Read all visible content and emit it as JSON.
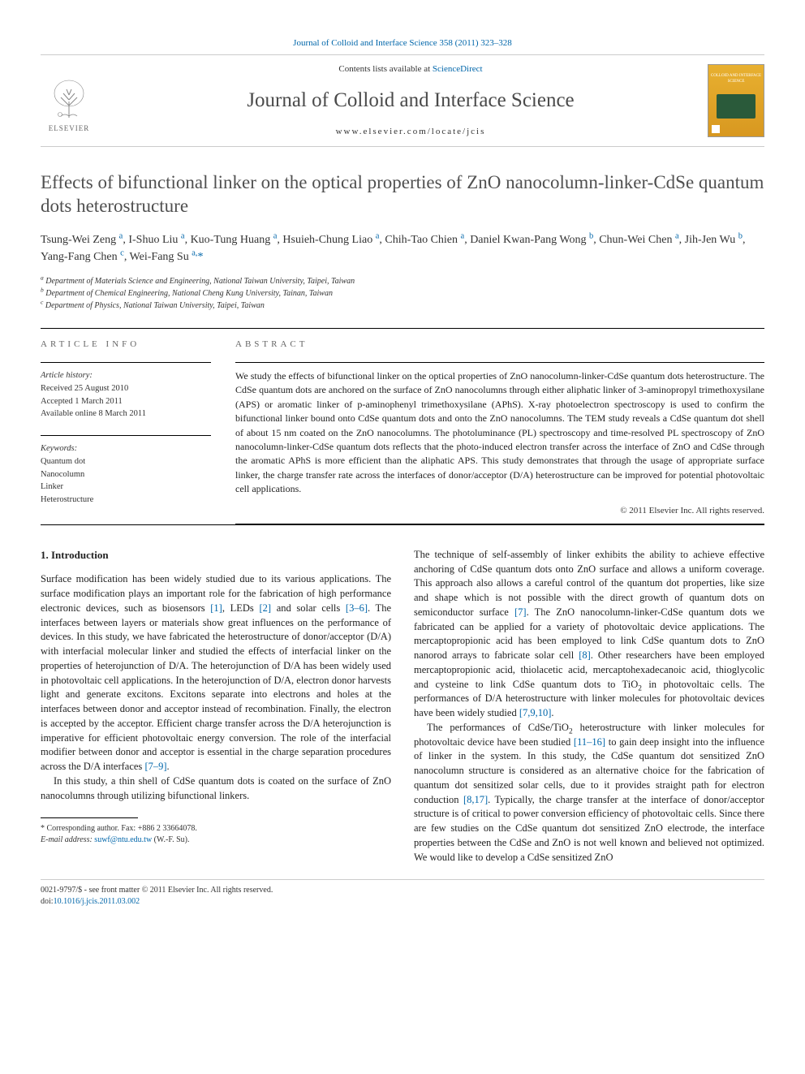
{
  "citation": "Journal of Colloid and Interface Science 358 (2011) 323–328",
  "masthead": {
    "publisher": "ELSEVIER",
    "contents_prefix": "Contents lists available at ",
    "contents_link": "ScienceDirect",
    "journal_name": "Journal of Colloid and Interface Science",
    "url": "www.elsevier.com/locate/jcis",
    "cover_label": "COLLOID AND INTERFACE SCIENCE"
  },
  "title": "Effects of bifunctional linker on the optical properties of ZnO nanocolumn-linker-CdSe quantum dots heterostructure",
  "authors_html": "Tsung-Wei Zeng <sup><a href=\"#\">a</a></sup>, I-Shuo Liu <sup><a href=\"#\">a</a></sup>, Kuo-Tung Huang <sup><a href=\"#\">a</a></sup>, Hsuieh-Chung Liao <sup><a href=\"#\">a</a></sup>, Chih-Tao Chien <sup><a href=\"#\">a</a></sup>, Daniel Kwan-Pang Wong <sup><a href=\"#\">b</a></sup>, Chun-Wei Chen <sup><a href=\"#\">a</a></sup>, Jih-Jen Wu <sup><a href=\"#\">b</a></sup>, Yang-Fang Chen <sup><a href=\"#\">c</a></sup>, Wei-Fang Su <sup><a href=\"#\">a,</a></sup><a href=\"#\">*</a>",
  "affiliations": {
    "a": "Department of Materials Science and Engineering, National Taiwan University, Taipei, Taiwan",
    "b": "Department of Chemical Engineering, National Cheng Kung University, Tainan, Taiwan",
    "c": "Department of Physics, National Taiwan University, Taipei, Taiwan"
  },
  "article_info": {
    "heading": "ARTICLE INFO",
    "history_label": "Article history:",
    "received": "Received 25 August 2010",
    "accepted": "Accepted 1 March 2011",
    "online": "Available online 8 March 2011",
    "keywords_label": "Keywords:",
    "keywords": [
      "Quantum dot",
      "Nanocolumn",
      "Linker",
      "Heterostructure"
    ]
  },
  "abstract": {
    "heading": "ABSTRACT",
    "text": "We study the effects of bifunctional linker on the optical properties of ZnO nanocolumn-linker-CdSe quantum dots heterostructure. The CdSe quantum dots are anchored on the surface of ZnO nanocolumns through either aliphatic linker of 3-aminopropyl trimethoxysilane (APS) or aromatic linker of p-aminophenyl trimethoxysilane (APhS). X-ray photoelectron spectroscopy is used to confirm the bifunctional linker bound onto CdSe quantum dots and onto the ZnO nanocolumns. The TEM study reveals a CdSe quantum dot shell of about 15 nm coated on the ZnO nanocolumns. The photoluminance (PL) spectroscopy and time-resolved PL spectroscopy of ZnO nanocolumn-linker-CdSe quantum dots reflects that the photo-induced electron transfer across the interface of ZnO and CdSe through the aromatic APhS is more efficient than the aliphatic APS. This study demonstrates that through the usage of appropriate surface linker, the charge transfer rate across the interfaces of donor/acceptor (D/A) heterostructure can be improved for potential photovoltaic cell applications.",
    "copyright": "© 2011 Elsevier Inc. All rights reserved."
  },
  "body": {
    "intro_heading": "1. Introduction",
    "col1_p1": "Surface modification has been widely studied due to its various applications. The surface modification plays an important role for the fabrication of high performance electronic devices, such as biosensors [1], LEDs [2] and solar cells [3–6]. The interfaces between layers or materials show great influences on the performance of devices. In this study, we have fabricated the heterostructure of donor/acceptor (D/A) with interfacial molecular linker and studied the effects of interfacial linker on the properties of heterojunction of D/A. The heterojunction of D/A has been widely used in photovoltaic cell applications. In the heterojunction of D/A, electron donor harvests light and generate excitons. Excitons separate into electrons and holes at the interfaces between donor and acceptor instead of recombination. Finally, the electron is accepted by the acceptor. Efficient charge transfer across the D/A heterojunction is imperative for efficient photovoltaic energy conversion. The role of the interfacial modifier between donor and acceptor is essential in the charge separation procedures across the D/A interfaces [7–9].",
    "col1_p2": "In this study, a thin shell of CdSe quantum dots is coated on the surface of ZnO nanocolumns through utilizing bifunctional linkers.",
    "col2_p1": "The technique of self-assembly of linker exhibits the ability to achieve effective anchoring of CdSe quantum dots onto ZnO surface and allows a uniform coverage. This approach also allows a careful control of the quantum dot properties, like size and shape which is not possible with the direct growth of quantum dots on semiconductor surface [7]. The ZnO nanocolumn-linker-CdSe quantum dots we fabricated can be applied for a variety of photovoltaic device applications. The mercaptopropionic acid has been employed to link CdSe quantum dots to ZnO nanorod arrays to fabricate solar cell [8]. Other researchers have been employed mercaptopropionic acid, thiolacetic acid, mercaptohexadecanoic acid, thioglycolic and cysteine to link CdSe quantum dots to TiO₂ in photovoltaic cells. The performances of D/A heterostructure with linker molecules for photovoltaic devices have been widely studied [7,9,10].",
    "col2_p2": "The performances of CdSe/TiO₂ heterostructure with linker molecules for photovoltaic device have been studied [11–16] to gain deep insight into the influence of linker in the system. In this study, the CdSe quantum dot sensitized ZnO nanocolumn structure is considered as an alternative choice for the fabrication of quantum dot sensitized solar cells, due to it provides straight path for electron conduction [8,17]. Typically, the charge transfer at the interface of donor/acceptor structure is of critical to power conversion efficiency of photovoltaic cells. Since there are few studies on the CdSe quantum dot sensitized ZnO electrode, the interface properties between the CdSe and ZnO is not well known and believed not optimized. We would like to develop a CdSe sensitized ZnO"
  },
  "footnote": {
    "corr": "* Corresponding author. Fax: +886 2 33664078.",
    "email_label": "E-mail address:",
    "email": "suwf@ntu.edu.tw",
    "email_suffix": "(W.-F. Su)."
  },
  "footer": {
    "left1": "0021-9797/$ - see front matter © 2011 Elsevier Inc. All rights reserved.",
    "left2_prefix": "doi:",
    "left2_link": "10.1016/j.jcis.2011.03.002"
  },
  "colors": {
    "link": "#0066aa",
    "title_gray": "#505050",
    "text": "#222222",
    "meta_gray": "#666666",
    "cover_bg": "#e8b030",
    "cover_img": "#2a5a3a"
  },
  "fonts": {
    "body_family": "Georgia, Times New Roman, serif",
    "title_size_pt": 17,
    "journal_name_size_pt": 19,
    "body_size_pt": 9.5,
    "abstract_size_pt": 9,
    "affil_size_pt": 7.5
  }
}
